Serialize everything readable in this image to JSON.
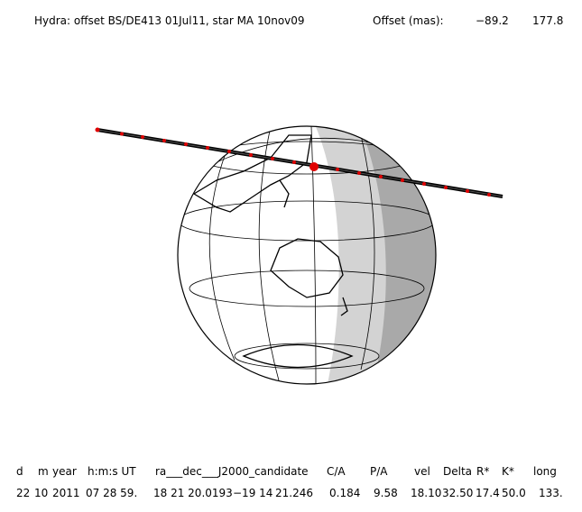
{
  "header": {
    "title": "Hydra: offset BS/DE413 01Jul11, star MA 10nov09",
    "offset_label": "Offset (mas):",
    "offset_x": "−89.2",
    "offset_y": "177.8"
  },
  "table": {
    "headers": [
      "d",
      "m",
      "year",
      "h:m:s UT",
      "ra___dec___J2000_candidate",
      "C/A",
      "P/A",
      "vel",
      "Delta",
      "R*",
      "K*",
      "long"
    ],
    "row": [
      "22",
      "10",
      "2011",
      "07 28 59.",
      "18 21 20.0193",
      "−19 14",
      "21.246",
      "0.184",
      "9.58",
      "18.10",
      "32.50",
      "17.4",
      "50.0",
      "133."
    ]
  }
}
